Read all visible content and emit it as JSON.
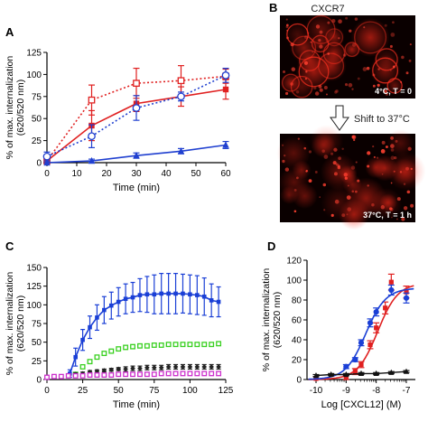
{
  "chart_data": [
    {
      "panel": "A",
      "type": "line",
      "xlabel": "Time  (min)",
      "ylabel": "% of max. internalization\n(620/520 nm)",
      "xlim": [
        0,
        60
      ],
      "ylim": [
        0,
        125
      ],
      "xticks": [
        0,
        10,
        20,
        30,
        40,
        50,
        60
      ],
      "yticks": [
        0,
        25,
        50,
        75,
        100,
        125
      ],
      "series": [
        {
          "color": "#e02020",
          "line": "dotted",
          "marker": "open-square",
          "x": [
            0,
            15,
            30,
            45,
            60
          ],
          "y": [
            2,
            71,
            90,
            93,
            98
          ],
          "err": [
            4,
            17,
            17,
            17,
            8
          ]
        },
        {
          "color": "#e02020",
          "line": "solid",
          "marker": "filled-square",
          "x": [
            0,
            15,
            30,
            45,
            60
          ],
          "y": [
            2,
            42,
            67,
            75,
            83
          ],
          "err": [
            3,
            17,
            9,
            11,
            11
          ]
        },
        {
          "color": "#2040d0",
          "line": "dotted",
          "marker": "open-circle",
          "x": [
            0,
            15,
            30,
            45,
            60
          ],
          "y": [
            7,
            30,
            62,
            75,
            99
          ],
          "err": [
            5,
            13,
            14,
            5,
            8
          ]
        },
        {
          "color": "#2040d0",
          "line": "solid",
          "marker": "filled-triangle",
          "x": [
            0,
            15,
            30,
            45,
            60
          ],
          "y": [
            0,
            2,
            8,
            13,
            20
          ],
          "err": [
            2,
            2,
            3,
            3,
            4
          ]
        }
      ]
    },
    {
      "panel": "C",
      "type": "line",
      "xlabel": "Time (min)",
      "ylabel": "% of max. internalization\n(620/520 nm)",
      "xlim": [
        0,
        125
      ],
      "ylim": [
        0,
        150
      ],
      "xticks": [
        0,
        25,
        50,
        75,
        100,
        125
      ],
      "yticks": [
        0,
        25,
        50,
        75,
        100,
        125,
        150
      ],
      "series": [
        {
          "color": "#1a3fd6",
          "marker": "filled-square",
          "x": [
            16,
            20,
            25,
            30,
            35,
            40,
            45,
            50,
            55,
            60,
            65,
            70,
            75,
            80,
            85,
            90,
            95,
            100,
            105,
            110,
            115,
            120
          ],
          "y": [
            8,
            30,
            53,
            70,
            83,
            93,
            99,
            104,
            108,
            110,
            113,
            114,
            114,
            115,
            115,
            115,
            115,
            114,
            113,
            111,
            106,
            104
          ],
          "err": [
            5,
            12,
            14,
            15,
            17,
            18,
            18,
            19,
            20,
            20,
            22,
            24,
            26,
            27,
            27,
            27,
            26,
            26,
            26,
            25,
            22,
            20
          ]
        },
        {
          "color": "#39d020",
          "marker": "open-square",
          "x": [
            20,
            25,
            30,
            35,
            40,
            45,
            50,
            55,
            60,
            65,
            70,
            75,
            80,
            85,
            90,
            95,
            100,
            105,
            110,
            115,
            120
          ],
          "y": [
            7,
            17,
            24,
            30,
            35,
            38,
            41,
            43,
            44,
            45,
            45,
            46,
            46,
            47,
            47,
            47,
            47,
            47,
            47,
            47,
            48
          ],
          "err": [
            2,
            2,
            2,
            2,
            2,
            2,
            2,
            2,
            2,
            2,
            2,
            2,
            2,
            2,
            2,
            2,
            2,
            2,
            2,
            2,
            2
          ]
        },
        {
          "color": "#222222",
          "marker": "filled-diamond",
          "x": [
            10,
            15,
            20,
            25,
            30,
            35,
            40,
            45,
            50,
            55,
            60,
            65,
            70,
            75,
            80,
            85,
            90,
            95,
            100,
            105,
            110,
            115,
            120
          ],
          "y": [
            4,
            5,
            7,
            8,
            10,
            11,
            12,
            13,
            14,
            14,
            15,
            15,
            16,
            16,
            16,
            17,
            17,
            17,
            17,
            17,
            17,
            17,
            17
          ],
          "err": [
            2,
            2,
            2,
            2,
            2,
            2,
            2,
            2,
            2,
            3,
            3,
            3,
            3,
            3,
            3,
            3,
            3,
            3,
            3,
            3,
            3,
            3,
            3
          ]
        },
        {
          "color": "#cc30cc",
          "marker": "open-square",
          "x": [
            0,
            5,
            10,
            15,
            20,
            25,
            30,
            35,
            40,
            45,
            50,
            55,
            60,
            65,
            70,
            75,
            80,
            85,
            90,
            95,
            100,
            105,
            110,
            115,
            120
          ],
          "y": [
            3,
            4,
            4,
            5,
            5,
            5,
            6,
            6,
            6,
            6,
            7,
            7,
            7,
            7,
            7,
            7,
            8,
            8,
            8,
            8,
            8,
            8,
            8,
            8,
            8
          ],
          "err": [
            2,
            2,
            2,
            2,
            2,
            2,
            2,
            2,
            2,
            2,
            2,
            2,
            2,
            2,
            2,
            2,
            2,
            2,
            2,
            2,
            2,
            2,
            2,
            2,
            2
          ]
        }
      ]
    },
    {
      "panel": "D",
      "type": "scatter",
      "xlabel": "Log [CXCL12] (M)",
      "ylabel": "% of max. internalization\n(620/520 nm)",
      "xlim": [
        -10.3,
        -6.7
      ],
      "ylim": [
        0,
        120
      ],
      "xticks": [
        -10,
        -9,
        -8,
        -7
      ],
      "xticklabels": [
        "-10",
        "-9",
        "-8",
        "-7"
      ],
      "yticks": [
        0,
        20,
        40,
        60,
        80,
        100,
        120
      ],
      "series": [
        {
          "color": "#e02020",
          "marker": "filled-square",
          "fit_ec50": -7.95,
          "fit_top": 97,
          "x": [
            -10,
            -9,
            -8.7,
            -8.5,
            -8.2,
            -8,
            -7.7,
            -7.5,
            -7
          ],
          "y": [
            1,
            2,
            8,
            15,
            35,
            52,
            72,
            98,
            88
          ],
          "err": [
            2,
            2,
            3,
            3,
            4,
            5,
            6,
            8,
            6
          ]
        },
        {
          "color": "#1a3fd6",
          "marker": "filled-circle",
          "fit_ec50": -8.35,
          "fit_top": 92,
          "x": [
            -9,
            -8.7,
            -8.5,
            -8.2,
            -8,
            -7.5,
            -7
          ],
          "y": [
            13,
            20,
            37,
            57,
            68,
            90,
            82
          ],
          "err": [
            2,
            2,
            3,
            4,
            4,
            5,
            5
          ]
        },
        {
          "color": "#111111",
          "marker": "filled-triangle",
          "x": [
            -10,
            -9.5,
            -9,
            -8.5,
            -8,
            -7.5,
            -7
          ],
          "y": [
            4,
            5,
            5,
            6,
            6,
            7,
            8
          ],
          "err": [
            1,
            1,
            1,
            1,
            1,
            1,
            1
          ]
        }
      ]
    }
  ],
  "panel_labels": {
    "a": "A",
    "b": "B",
    "c": "C",
    "d": "D"
  },
  "micrographs": {
    "title": "CXCR7",
    "top_caption": "4°C, T = 0",
    "shift_label": "Shift to 37°C",
    "bottom_caption": "37°C, T = 1 h"
  }
}
